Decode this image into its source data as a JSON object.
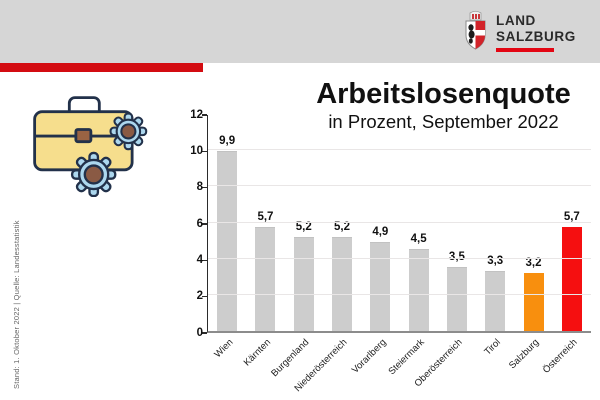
{
  "header": {
    "band_color": "#D6D6D6",
    "stripe_color": "#D30C11",
    "logo": {
      "line1": "LAND",
      "line2": "SALZBURG",
      "underline_color": "#E30613",
      "crest_icon": "salzburg-coat-of-arms"
    }
  },
  "side_note": "Stand: 1. Oktober 2022 | Quelle: Landesstatistik",
  "side_icon": "briefcase-and-gears",
  "chart_data": {
    "type": "bar",
    "title": "Arbeitslosenquote",
    "subtitle": "in Prozent, September 2022",
    "categories": [
      "Wien",
      "Kärnten",
      "Burgenland",
      "Niederösterreich",
      "Vorarlberg",
      "Steiermark",
      "Oberösterreich",
      "Tirol",
      "Salzburg",
      "Österreich"
    ],
    "values": [
      9.9,
      5.7,
      5.2,
      5.2,
      4.9,
      4.5,
      3.5,
      3.3,
      3.2,
      5.7
    ],
    "values_display": [
      "9,9",
      "5,7",
      "5,2",
      "5,2",
      "4,9",
      "4,5",
      "3,5",
      "3,3",
      "3,2",
      "5,7"
    ],
    "bar_colors": [
      "#CDCDCD",
      "#CDCDCD",
      "#CDCDCD",
      "#CDCDCD",
      "#CDCDCD",
      "#CDCDCD",
      "#CDCDCD",
      "#CDCDCD",
      "#F88F0E",
      "#F50F10"
    ],
    "default_bar_color": "#CDCDCD",
    "highlight_colors": {
      "Salzburg": "#F88F0E",
      "Österreich": "#F50F10"
    },
    "xlabel": "",
    "ylabel": "",
    "ylim": [
      0,
      12
    ],
    "yticks": [
      0,
      2,
      4,
      6,
      8,
      10,
      12
    ],
    "grid": true,
    "legend": "none",
    "x_tick_rotation": -45
  }
}
